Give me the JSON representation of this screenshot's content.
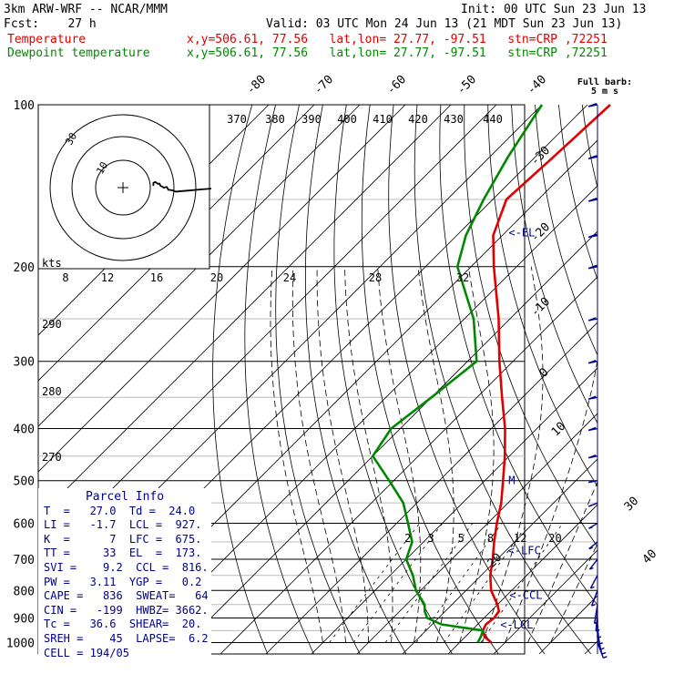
{
  "header": {
    "line1_left": "3km ARW-WRF -- NCAR/MMM",
    "line1_right": "Init: 00 UTC Sun 23 Jun 13",
    "line2_left": "Fcst:    27 h",
    "line2_right": "Valid: 03 UTC Mon 24 Jun 13 (21 MDT Sun 23 Jun 13)",
    "temp_label": "Temperature",
    "temp_info": "x,y=506.61, 77.56   lat,lon= 27.77, -97.51   stn=CRP ,72251",
    "dew_label": "Dewpoint temperature",
    "dew_info": "x,y=506.61, 77.56   lat,lon= 27.77, -97.51   stn=CRP ,72251"
  },
  "colors": {
    "temperature": "#e00000",
    "dewpoint": "#008800",
    "panel_text": "#00008b",
    "wind": "#00008b"
  },
  "chart_data": {
    "type": "line",
    "subtype": "skew-T log-p diagram",
    "pressure_ticks": [
      100,
      200,
      300,
      400,
      500,
      600,
      700,
      800,
      900,
      1000
    ],
    "isotherm_labels": [
      "-80",
      "-70",
      "-60",
      "-50",
      "-40",
      "-30",
      "-20",
      "-10",
      "0",
      "10",
      "20",
      "30",
      "40"
    ],
    "isotherm_values": [
      -80,
      -70,
      -60,
      -50,
      -40,
      -30,
      -20,
      -10,
      0,
      10,
      20,
      30,
      40
    ],
    "theta_labels": [
      "370",
      "380",
      "390",
      "400",
      "410",
      "420",
      "430",
      "440"
    ],
    "theta_e_labels": [
      "290",
      "280",
      "270"
    ],
    "mixing_ratio_labels": [
      "2",
      "3",
      "5",
      "8",
      "12",
      "20"
    ],
    "series": [
      {
        "name": "Temperature",
        "points": [
          [
            1000,
            27.0
          ],
          [
            975,
            24.2
          ],
          [
            950,
            22.5
          ],
          [
            925,
            21.8
          ],
          [
            900,
            22.2
          ],
          [
            875,
            21.8
          ],
          [
            850,
            20.0
          ],
          [
            800,
            15.5
          ],
          [
            750,
            12.0
          ],
          [
            700,
            9.0
          ],
          [
            650,
            5.5
          ],
          [
            600,
            2.0
          ],
          [
            550,
            -1.5
          ],
          [
            500,
            -6.0
          ],
          [
            450,
            -11.0
          ],
          [
            400,
            -17.0
          ],
          [
            350,
            -24.5
          ],
          [
            300,
            -33.0
          ],
          [
            250,
            -42.5
          ],
          [
            200,
            -55.0
          ],
          [
            175,
            -62.0
          ],
          [
            150,
            -67.0
          ],
          [
            125,
            -66.0
          ],
          [
            100,
            -65.0
          ]
        ]
      },
      {
        "name": "Dewpoint temperature",
        "points": [
          [
            1000,
            24.0
          ],
          [
            975,
            23.4
          ],
          [
            950,
            22.5
          ],
          [
            925,
            12.0
          ],
          [
            900,
            7.5
          ],
          [
            875,
            5.5
          ],
          [
            850,
            4.0
          ],
          [
            800,
            -1.0
          ],
          [
            750,
            -5.0
          ],
          [
            700,
            -10.0
          ],
          [
            650,
            -12.5
          ],
          [
            600,
            -17.5
          ],
          [
            550,
            -23.0
          ],
          [
            500,
            -31.0
          ],
          [
            450,
            -40.0
          ],
          [
            400,
            -42.0
          ],
          [
            350,
            -40.0
          ],
          [
            300,
            -38.0
          ],
          [
            250,
            -48.0
          ],
          [
            200,
            -63.0
          ],
          [
            175,
            -68.0
          ],
          [
            150,
            -72.0
          ],
          [
            125,
            -76.0
          ],
          [
            100,
            -80.0
          ]
        ]
      }
    ],
    "annotations": [
      "<-EL",
      "<-LFC",
      "<-CCL",
      "<-LCL",
      "M"
    ],
    "barb_header": "Full barb:",
    "barb_units": "5 m s",
    "wind_profile": [
      {
        "p": 1000,
        "spd": 4,
        "dir": 140
      },
      {
        "p": 975,
        "spd": 5,
        "dir": 150
      },
      {
        "p": 950,
        "spd": 5,
        "dir": 160
      },
      {
        "p": 925,
        "spd": 4,
        "dir": 170
      },
      {
        "p": 900,
        "spd": 4,
        "dir": 180
      },
      {
        "p": 875,
        "spd": 3,
        "dir": 190
      },
      {
        "p": 850,
        "spd": 3,
        "dir": 200
      },
      {
        "p": 800,
        "spd": 3,
        "dir": 220
      },
      {
        "p": 750,
        "spd": 4,
        "dir": 230
      },
      {
        "p": 700,
        "spd": 4,
        "dir": 240
      },
      {
        "p": 650,
        "spd": 4,
        "dir": 250
      },
      {
        "p": 600,
        "spd": 5,
        "dir": 255
      },
      {
        "p": 550,
        "spd": 6,
        "dir": 260
      },
      {
        "p": 500,
        "spd": 7,
        "dir": 265
      },
      {
        "p": 450,
        "spd": 8,
        "dir": 265
      },
      {
        "p": 400,
        "spd": 10,
        "dir": 265
      },
      {
        "p": 350,
        "spd": 12,
        "dir": 265
      },
      {
        "p": 300,
        "spd": 14,
        "dir": 265
      },
      {
        "p": 250,
        "spd": 16,
        "dir": 265
      },
      {
        "p": 200,
        "spd": 18,
        "dir": 265
      },
      {
        "p": 175,
        "spd": 20,
        "dir": 265
      },
      {
        "p": 150,
        "spd": 22,
        "dir": 265
      },
      {
        "p": 125,
        "spd": 22,
        "dir": 265
      },
      {
        "p": 100,
        "spd": 20,
        "dir": 265
      }
    ]
  },
  "hodograph": {
    "axis_units": "kts",
    "speed_ticks": [
      "8",
      "12",
      "16",
      "20",
      "24",
      "28",
      "32"
    ],
    "ring_labels": [
      "30",
      "10"
    ]
  },
  "parcel_info": {
    "title": "Parcel Info",
    "rows": [
      "T  =   27.0  Td =  24.0",
      "LI =   -1.7  LCL =  927.",
      "K  =      7  LFC =  675.",
      "TT =     33  EL  =  173.",
      "SVI =    9.2  CCL =  816.",
      "PW =   3.11  YGP =   0.2",
      "CAPE =   836  SWEAT=   64",
      "CIN =   -199  HWBZ= 3662.",
      "Tc =   36.6  SHEAR=  20.",
      "SREH =    45  LAPSE=  6.2",
      "CELL = 194/05"
    ]
  }
}
